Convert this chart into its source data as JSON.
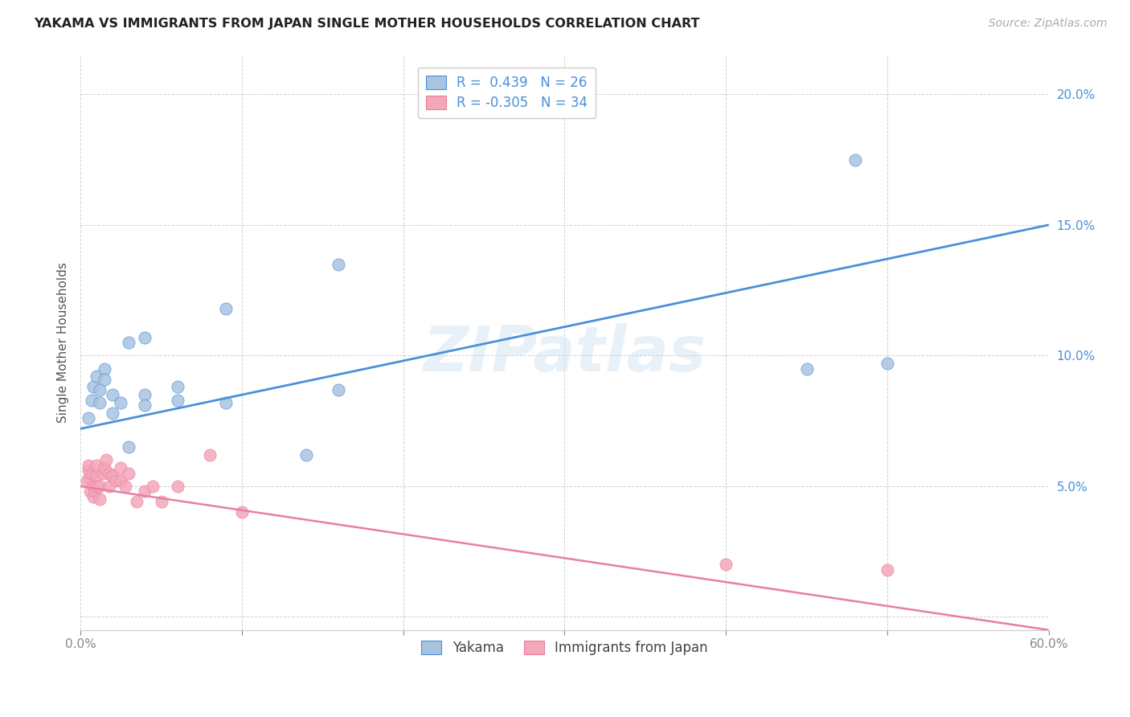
{
  "title": "YAKAMA VS IMMIGRANTS FROM JAPAN SINGLE MOTHER HOUSEHOLDS CORRELATION CHART",
  "source": "Source: ZipAtlas.com",
  "xlabel": "",
  "ylabel": "Single Mother Households",
  "xlim": [
    0,
    0.6
  ],
  "ylim": [
    -0.005,
    0.215
  ],
  "xticks": [
    0.0,
    0.1,
    0.2,
    0.3,
    0.4,
    0.5,
    0.6
  ],
  "xticklabels": [
    "0.0%",
    "",
    "",
    "",
    "",
    "",
    "60.0%"
  ],
  "yticks": [
    0.0,
    0.05,
    0.1,
    0.15,
    0.2
  ],
  "yticklabels": [
    "",
    "5.0%",
    "10.0%",
    "15.0%",
    "20.0%"
  ],
  "yakama_color": "#a8c4e0",
  "japan_color": "#f4a7b9",
  "line_blue": "#4a90d9",
  "line_pink": "#e87fa0",
  "legend_R1": "R =  0.439",
  "legend_N1": "N = 26",
  "legend_R2": "R = -0.305",
  "legend_N2": "N = 34",
  "watermark": "ZIPatlas",
  "yakama_x": [
    0.005,
    0.007,
    0.008,
    0.01,
    0.012,
    0.012,
    0.015,
    0.015,
    0.02,
    0.02,
    0.025,
    0.03,
    0.03,
    0.04,
    0.04,
    0.04,
    0.06,
    0.06,
    0.09,
    0.09,
    0.14,
    0.16,
    0.16,
    0.45,
    0.48,
    0.5
  ],
  "yakama_y": [
    0.076,
    0.083,
    0.088,
    0.092,
    0.087,
    0.082,
    0.095,
    0.091,
    0.085,
    0.078,
    0.082,
    0.065,
    0.105,
    0.107,
    0.085,
    0.081,
    0.083,
    0.088,
    0.118,
    0.082,
    0.062,
    0.135,
    0.087,
    0.095,
    0.175,
    0.097
  ],
  "japan_x": [
    0.004,
    0.005,
    0.005,
    0.006,
    0.006,
    0.007,
    0.008,
    0.008,
    0.009,
    0.01,
    0.01,
    0.01,
    0.012,
    0.012,
    0.014,
    0.015,
    0.016,
    0.018,
    0.018,
    0.02,
    0.022,
    0.025,
    0.025,
    0.028,
    0.03,
    0.035,
    0.04,
    0.045,
    0.05,
    0.06,
    0.08,
    0.1,
    0.4,
    0.5
  ],
  "japan_y": [
    0.052,
    0.056,
    0.058,
    0.053,
    0.048,
    0.055,
    0.05,
    0.046,
    0.048,
    0.054,
    0.058,
    0.05,
    0.05,
    0.045,
    0.055,
    0.057,
    0.06,
    0.055,
    0.05,
    0.054,
    0.052,
    0.057,
    0.052,
    0.05,
    0.055,
    0.044,
    0.048,
    0.05,
    0.044,
    0.05,
    0.062,
    0.04,
    0.02,
    0.018
  ],
  "blue_line_x": [
    0.0,
    0.6
  ],
  "blue_line_y": [
    0.072,
    0.15
  ],
  "pink_line_x": [
    0.0,
    0.6
  ],
  "pink_line_y": [
    0.05,
    -0.005
  ]
}
